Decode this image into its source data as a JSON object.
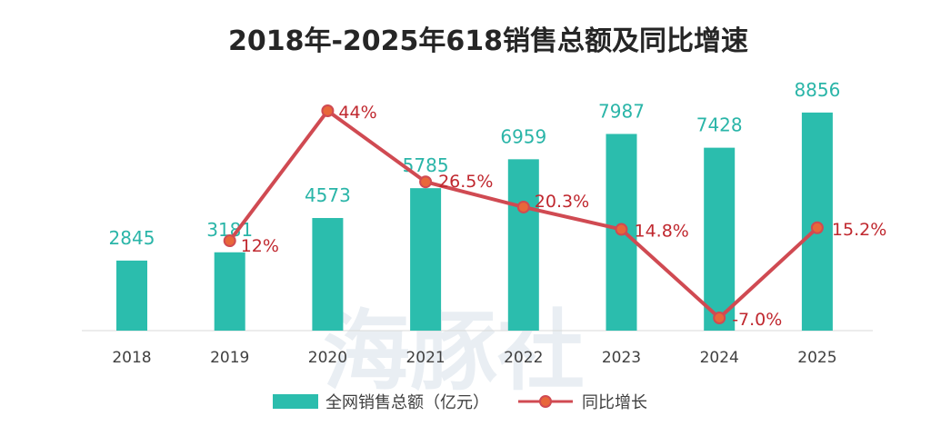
{
  "chart_data": {
    "type": "bar",
    "title": "2018年-2025年618销售总额及同比增速",
    "categories": [
      "2018",
      "2019",
      "2020",
      "2021",
      "2022",
      "2023",
      "2024",
      "2025"
    ],
    "series": [
      {
        "name": "全网销售总额（亿元）",
        "type": "bar",
        "values": [
          2845,
          3181,
          4573,
          5785,
          6959,
          7987,
          7428,
          8856
        ],
        "labels": [
          "2845",
          "3181",
          "4573",
          "5785",
          "6959",
          "7987",
          "7428",
          "8856"
        ]
      },
      {
        "name": "同比增长",
        "type": "line",
        "values": [
          null,
          12,
          44,
          26.5,
          20.3,
          14.8,
          -7.0,
          15.2
        ],
        "labels": [
          "",
          "12%",
          "44%",
          "26.5%",
          "20.3%",
          "14.8%",
          "-7.0%",
          "15.2%"
        ]
      }
    ],
    "bar_ylim": [
      0,
      9800
    ],
    "line_ylim": [
      -10,
      50
    ],
    "legend_position": "bottom",
    "grid": false
  },
  "colors": {
    "bar": "#2bbdad",
    "line": "#d04a52",
    "marker_fill": "#e8673a",
    "marker_stroke": "#d04a52",
    "axis": "#d9d9d9"
  },
  "watermark": "海豚社"
}
